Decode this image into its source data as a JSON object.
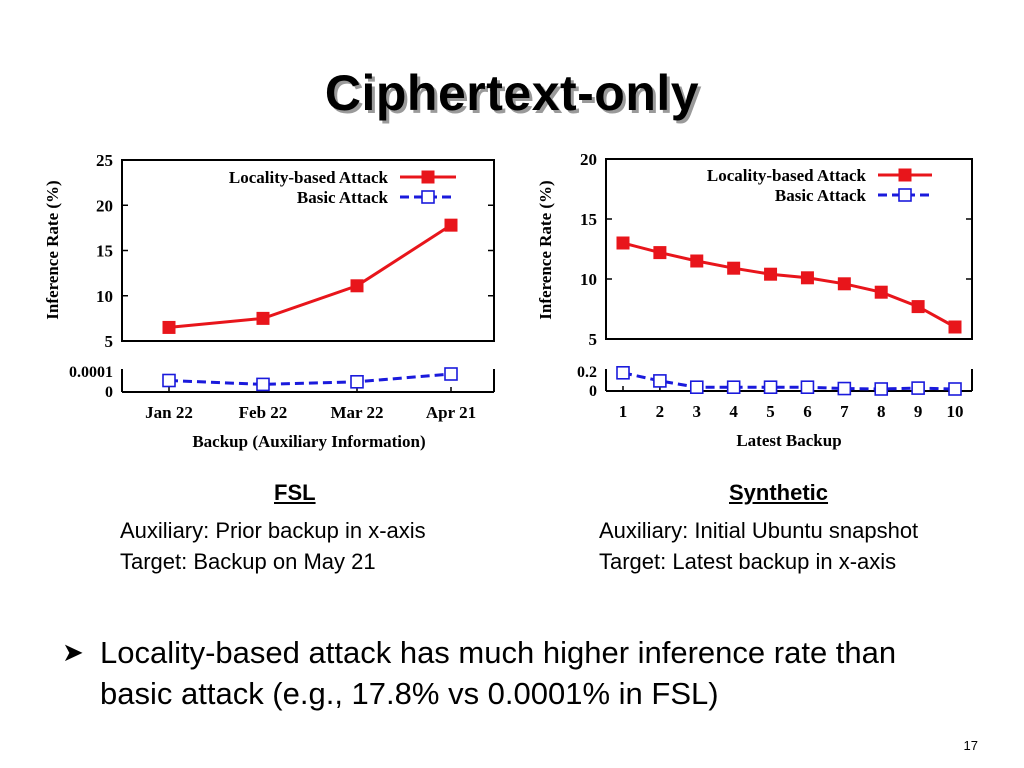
{
  "slide": {
    "title": "Ciphertext-only",
    "page_number": "17",
    "bullet": "Locality-based attack has much higher inference rate than basic attack (e.g., 17.8% vs 0.0001% in FSL)"
  },
  "captions": {
    "left": {
      "heading": "FSL",
      "line1": "Auxiliary: Prior backup in x-axis",
      "line2": "Target: Backup on May 21"
    },
    "right": {
      "heading": "Synthetic",
      "line1": "Auxiliary: Initial Ubuntu snapshot",
      "line2": "Target: Latest backup in x-axis"
    }
  },
  "colors": {
    "locality": "#e8151b",
    "basic": "#1a1adc"
  },
  "chart_data": [
    {
      "type": "line",
      "title": "",
      "xlabel": "Backup (Auxiliary Information)",
      "ylabel": "Inference Rate (%)",
      "categories": [
        "Jan 22",
        "Feb 22",
        "Mar 22",
        "Apr 21"
      ],
      "upper_panel": {
        "ylim": [
          5,
          25
        ],
        "yticks": [
          5,
          10,
          15,
          20,
          25
        ]
      },
      "lower_panel": {
        "ylim": [
          0,
          0.0001
        ],
        "ytick_labels": [
          "0.0001",
          "0"
        ]
      },
      "legend_position": "top-right",
      "series": [
        {
          "name": "Locality-based Attack",
          "panel": "upper",
          "marker": "filled-square",
          "values": [
            6.5,
            7.5,
            11.1,
            17.8
          ]
        },
        {
          "name": "Basic Attack",
          "panel": "lower",
          "marker": "open-square",
          "values": [
            5e-05,
            2e-05,
            4e-05,
            0.0001
          ]
        }
      ]
    },
    {
      "type": "line",
      "title": "",
      "xlabel": "Latest Backup",
      "ylabel": "Inference Rate (%)",
      "categories": [
        "1",
        "2",
        "3",
        "4",
        "5",
        "6",
        "7",
        "8",
        "9",
        "10"
      ],
      "upper_panel": {
        "ylim": [
          5,
          20
        ],
        "yticks": [
          5,
          10,
          15,
          20
        ]
      },
      "lower_panel": {
        "ylim": [
          0,
          0.2
        ],
        "ytick_labels": [
          "0.2",
          "0"
        ]
      },
      "legend_position": "top-right",
      "series": [
        {
          "name": "Locality-based Attack",
          "panel": "upper",
          "marker": "filled-square",
          "values": [
            13.0,
            12.2,
            11.5,
            10.9,
            10.4,
            10.1,
            9.6,
            8.9,
            7.7,
            6.0
          ]
        },
        {
          "name": "Basic Attack",
          "panel": "lower",
          "marker": "open-square",
          "values": [
            0.18,
            0.09,
            0.02,
            0.02,
            0.02,
            0.02,
            0.005,
            0.0,
            0.01,
            0.0
          ]
        }
      ]
    }
  ]
}
